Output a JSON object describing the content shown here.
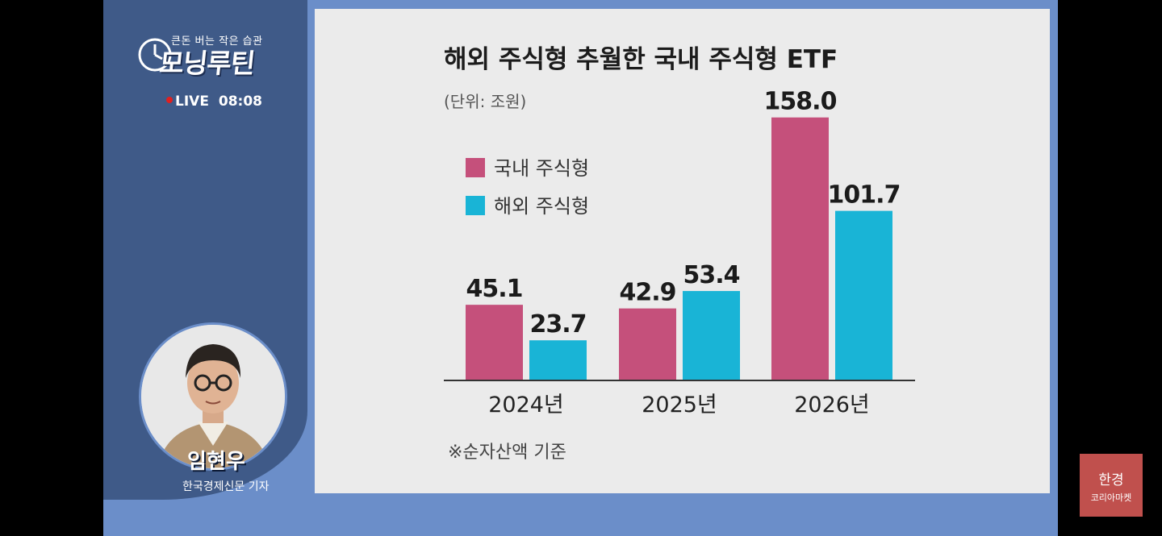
{
  "show": {
    "tagline": "큰돈 버는 작은 습관",
    "logo": "모닝루틴",
    "live_label": "LIVE",
    "live_time": "08:08"
  },
  "presenter": {
    "name": "임현우",
    "role": "한국경제신문 기자"
  },
  "brand": {
    "line1": "한경",
    "line2": "코리아마켓"
  },
  "colors": {
    "domestic": "#c5507b",
    "overseas": "#19b4d6",
    "panel": "#3f5a88",
    "chart_bg": "#ebebeb"
  },
  "chart_data": {
    "type": "bar",
    "title": "해외 주식형 추월한 국내 주식형 ETF",
    "subtitle": "(단위: 조원)",
    "footnote": "※순자산액 기준",
    "categories": [
      "2024년",
      "2025년",
      "2026년"
    ],
    "series": [
      {
        "name": "국내 주식형",
        "values": [
          45.1,
          42.9,
          158.0
        ],
        "labels": [
          "45.1",
          "42.9",
          "158.0"
        ]
      },
      {
        "name": "해외 주식형",
        "values": [
          23.7,
          53.4,
          101.7
        ],
        "labels": [
          "23.7",
          "53.4",
          "101.7"
        ]
      }
    ],
    "ylim": [
      0,
      170
    ],
    "legend": "top-left",
    "grid": false
  }
}
